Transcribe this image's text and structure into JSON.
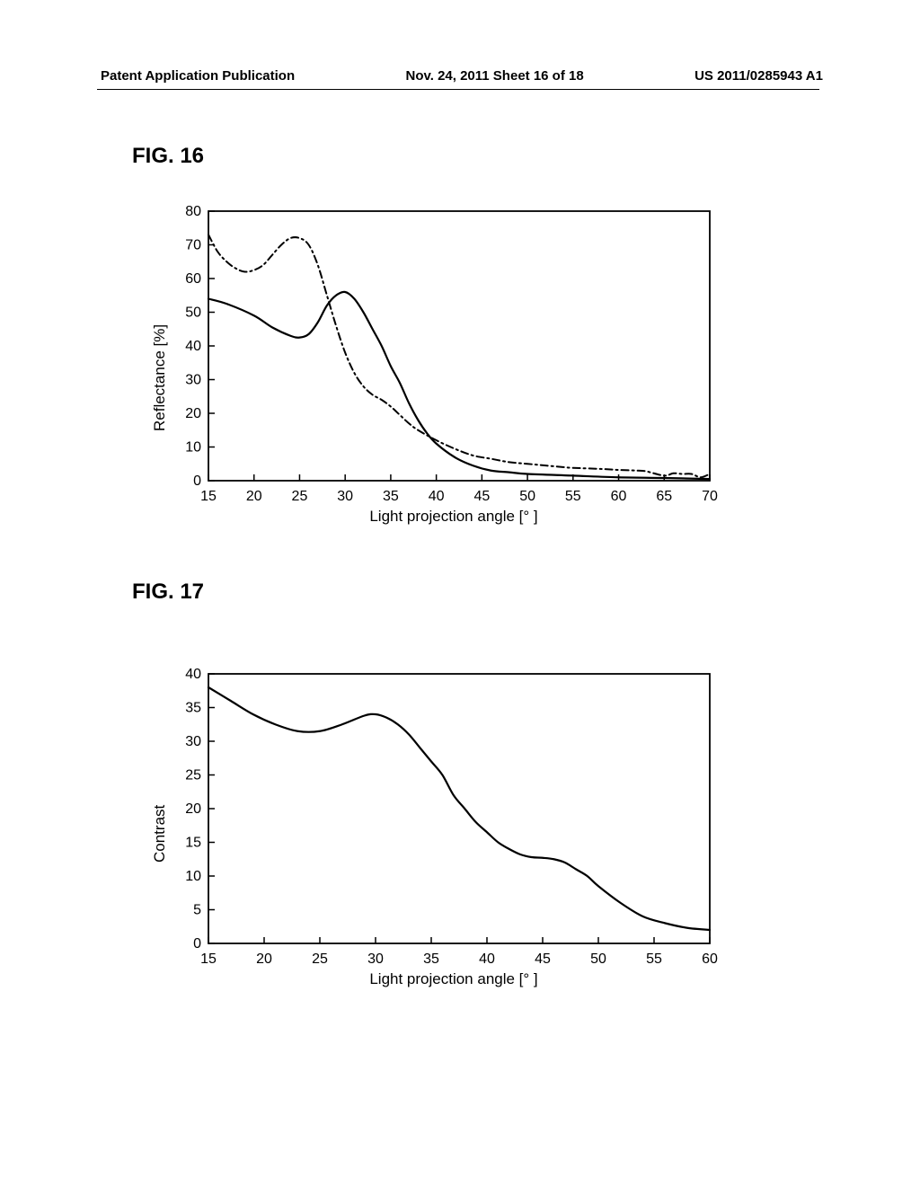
{
  "header": {
    "left": "Patent Application Publication",
    "center": "Nov. 24, 2011  Sheet 16 of 18",
    "right": "US 2011/0285943 A1"
  },
  "fig16": {
    "label": "FIG. 16",
    "chart": {
      "type": "line",
      "xlabel": "Light projection angle [° ]",
      "ylabel": "Reflectance [%]",
      "xlim": [
        15,
        70
      ],
      "ylim": [
        0,
        80
      ],
      "xticks": [
        15,
        20,
        25,
        30,
        35,
        40,
        45,
        50,
        55,
        60,
        65,
        70
      ],
      "yticks": [
        0,
        10,
        20,
        30,
        40,
        50,
        60,
        70,
        80
      ],
      "background_color": "#ffffff",
      "axis_color": "#000000",
      "series": [
        {
          "name": "solid",
          "style": "solid",
          "color": "#000000",
          "width": 2.2,
          "points": [
            [
              15,
              54
            ],
            [
              17,
              52.5
            ],
            [
              20,
              49
            ],
            [
              22,
              45.5
            ],
            [
              24,
              43
            ],
            [
              25,
              42.5
            ],
            [
              26,
              43.5
            ],
            [
              27,
              47
            ],
            [
              28,
              52
            ],
            [
              29,
              55
            ],
            [
              30,
              56
            ],
            [
              31,
              54
            ],
            [
              32,
              50
            ],
            [
              33,
              45
            ],
            [
              34,
              40
            ],
            [
              35,
              34
            ],
            [
              36,
              29
            ],
            [
              37,
              23
            ],
            [
              38,
              18
            ],
            [
              39,
              14
            ],
            [
              40,
              11
            ],
            [
              42,
              7
            ],
            [
              44,
              4.5
            ],
            [
              46,
              3
            ],
            [
              48,
              2.5
            ],
            [
              50,
              2
            ],
            [
              55,
              1.5
            ],
            [
              60,
              1
            ],
            [
              65,
              0.8
            ],
            [
              70,
              0.5
            ]
          ]
        },
        {
          "name": "dashdot",
          "style": "dashdot",
          "color": "#000000",
          "width": 2.0,
          "dash": "8 4 2 4",
          "points": [
            [
              15,
              73
            ],
            [
              16,
              68
            ],
            [
              17,
              65
            ],
            [
              18,
              63
            ],
            [
              19,
              62
            ],
            [
              20,
              62.5
            ],
            [
              21,
              64
            ],
            [
              22,
              67
            ],
            [
              23,
              70
            ],
            [
              24,
              72
            ],
            [
              25,
              72
            ],
            [
              26,
              70
            ],
            [
              27,
              64
            ],
            [
              28,
              55
            ],
            [
              29,
              46
            ],
            [
              30,
              38
            ],
            [
              31,
              32
            ],
            [
              32,
              28
            ],
            [
              33,
              25.5
            ],
            [
              34,
              24
            ],
            [
              35,
              22
            ],
            [
              36,
              19.5
            ],
            [
              37,
              17
            ],
            [
              38,
              15
            ],
            [
              40,
              12
            ],
            [
              42,
              9.5
            ],
            [
              44,
              7.5
            ],
            [
              46,
              6.5
            ],
            [
              48,
              5.5
            ],
            [
              50,
              5
            ],
            [
              52,
              4.5
            ],
            [
              54,
              4
            ],
            [
              55,
              3.8
            ],
            [
              58,
              3.5
            ],
            [
              60,
              3.2
            ],
            [
              62,
              3
            ],
            [
              63,
              2.8
            ],
            [
              65,
              1.5
            ],
            [
              66,
              2.2
            ],
            [
              67,
              2
            ],
            [
              68,
              2
            ],
            [
              69,
              1
            ],
            [
              70,
              2
            ]
          ]
        }
      ]
    }
  },
  "fig17": {
    "label": "FIG. 17",
    "chart": {
      "type": "line",
      "xlabel": "Light projection angle [° ]",
      "ylabel": "Contrast",
      "xlim": [
        15,
        60
      ],
      "ylim": [
        0,
        40
      ],
      "xticks": [
        15,
        20,
        25,
        30,
        35,
        40,
        45,
        50,
        55,
        60
      ],
      "yticks": [
        0,
        5,
        10,
        15,
        20,
        25,
        30,
        35,
        40
      ],
      "background_color": "#ffffff",
      "axis_color": "#000000",
      "series": [
        {
          "name": "solid",
          "style": "solid",
          "color": "#000000",
          "width": 2.2,
          "points": [
            [
              15,
              38
            ],
            [
              17,
              36
            ],
            [
              19,
              34
            ],
            [
              21,
              32.5
            ],
            [
              23,
              31.5
            ],
            [
              25,
              31.5
            ],
            [
              27,
              32.5
            ],
            [
              29,
              33.8
            ],
            [
              30,
              34
            ],
            [
              31,
              33.5
            ],
            [
              32,
              32.5
            ],
            [
              33,
              31
            ],
            [
              34,
              29
            ],
            [
              35,
              27
            ],
            [
              36,
              25
            ],
            [
              37,
              22
            ],
            [
              38,
              20
            ],
            [
              39,
              18
            ],
            [
              40,
              16.5
            ],
            [
              41,
              15
            ],
            [
              42,
              14
            ],
            [
              43,
              13.2
            ],
            [
              44,
              12.8
            ],
            [
              45,
              12.7
            ],
            [
              46,
              12.5
            ],
            [
              47,
              12
            ],
            [
              48,
              11
            ],
            [
              49,
              10
            ],
            [
              50,
              8.5
            ],
            [
              52,
              6
            ],
            [
              54,
              4
            ],
            [
              56,
              3
            ],
            [
              58,
              2.3
            ],
            [
              60,
              2
            ]
          ]
        }
      ]
    }
  }
}
